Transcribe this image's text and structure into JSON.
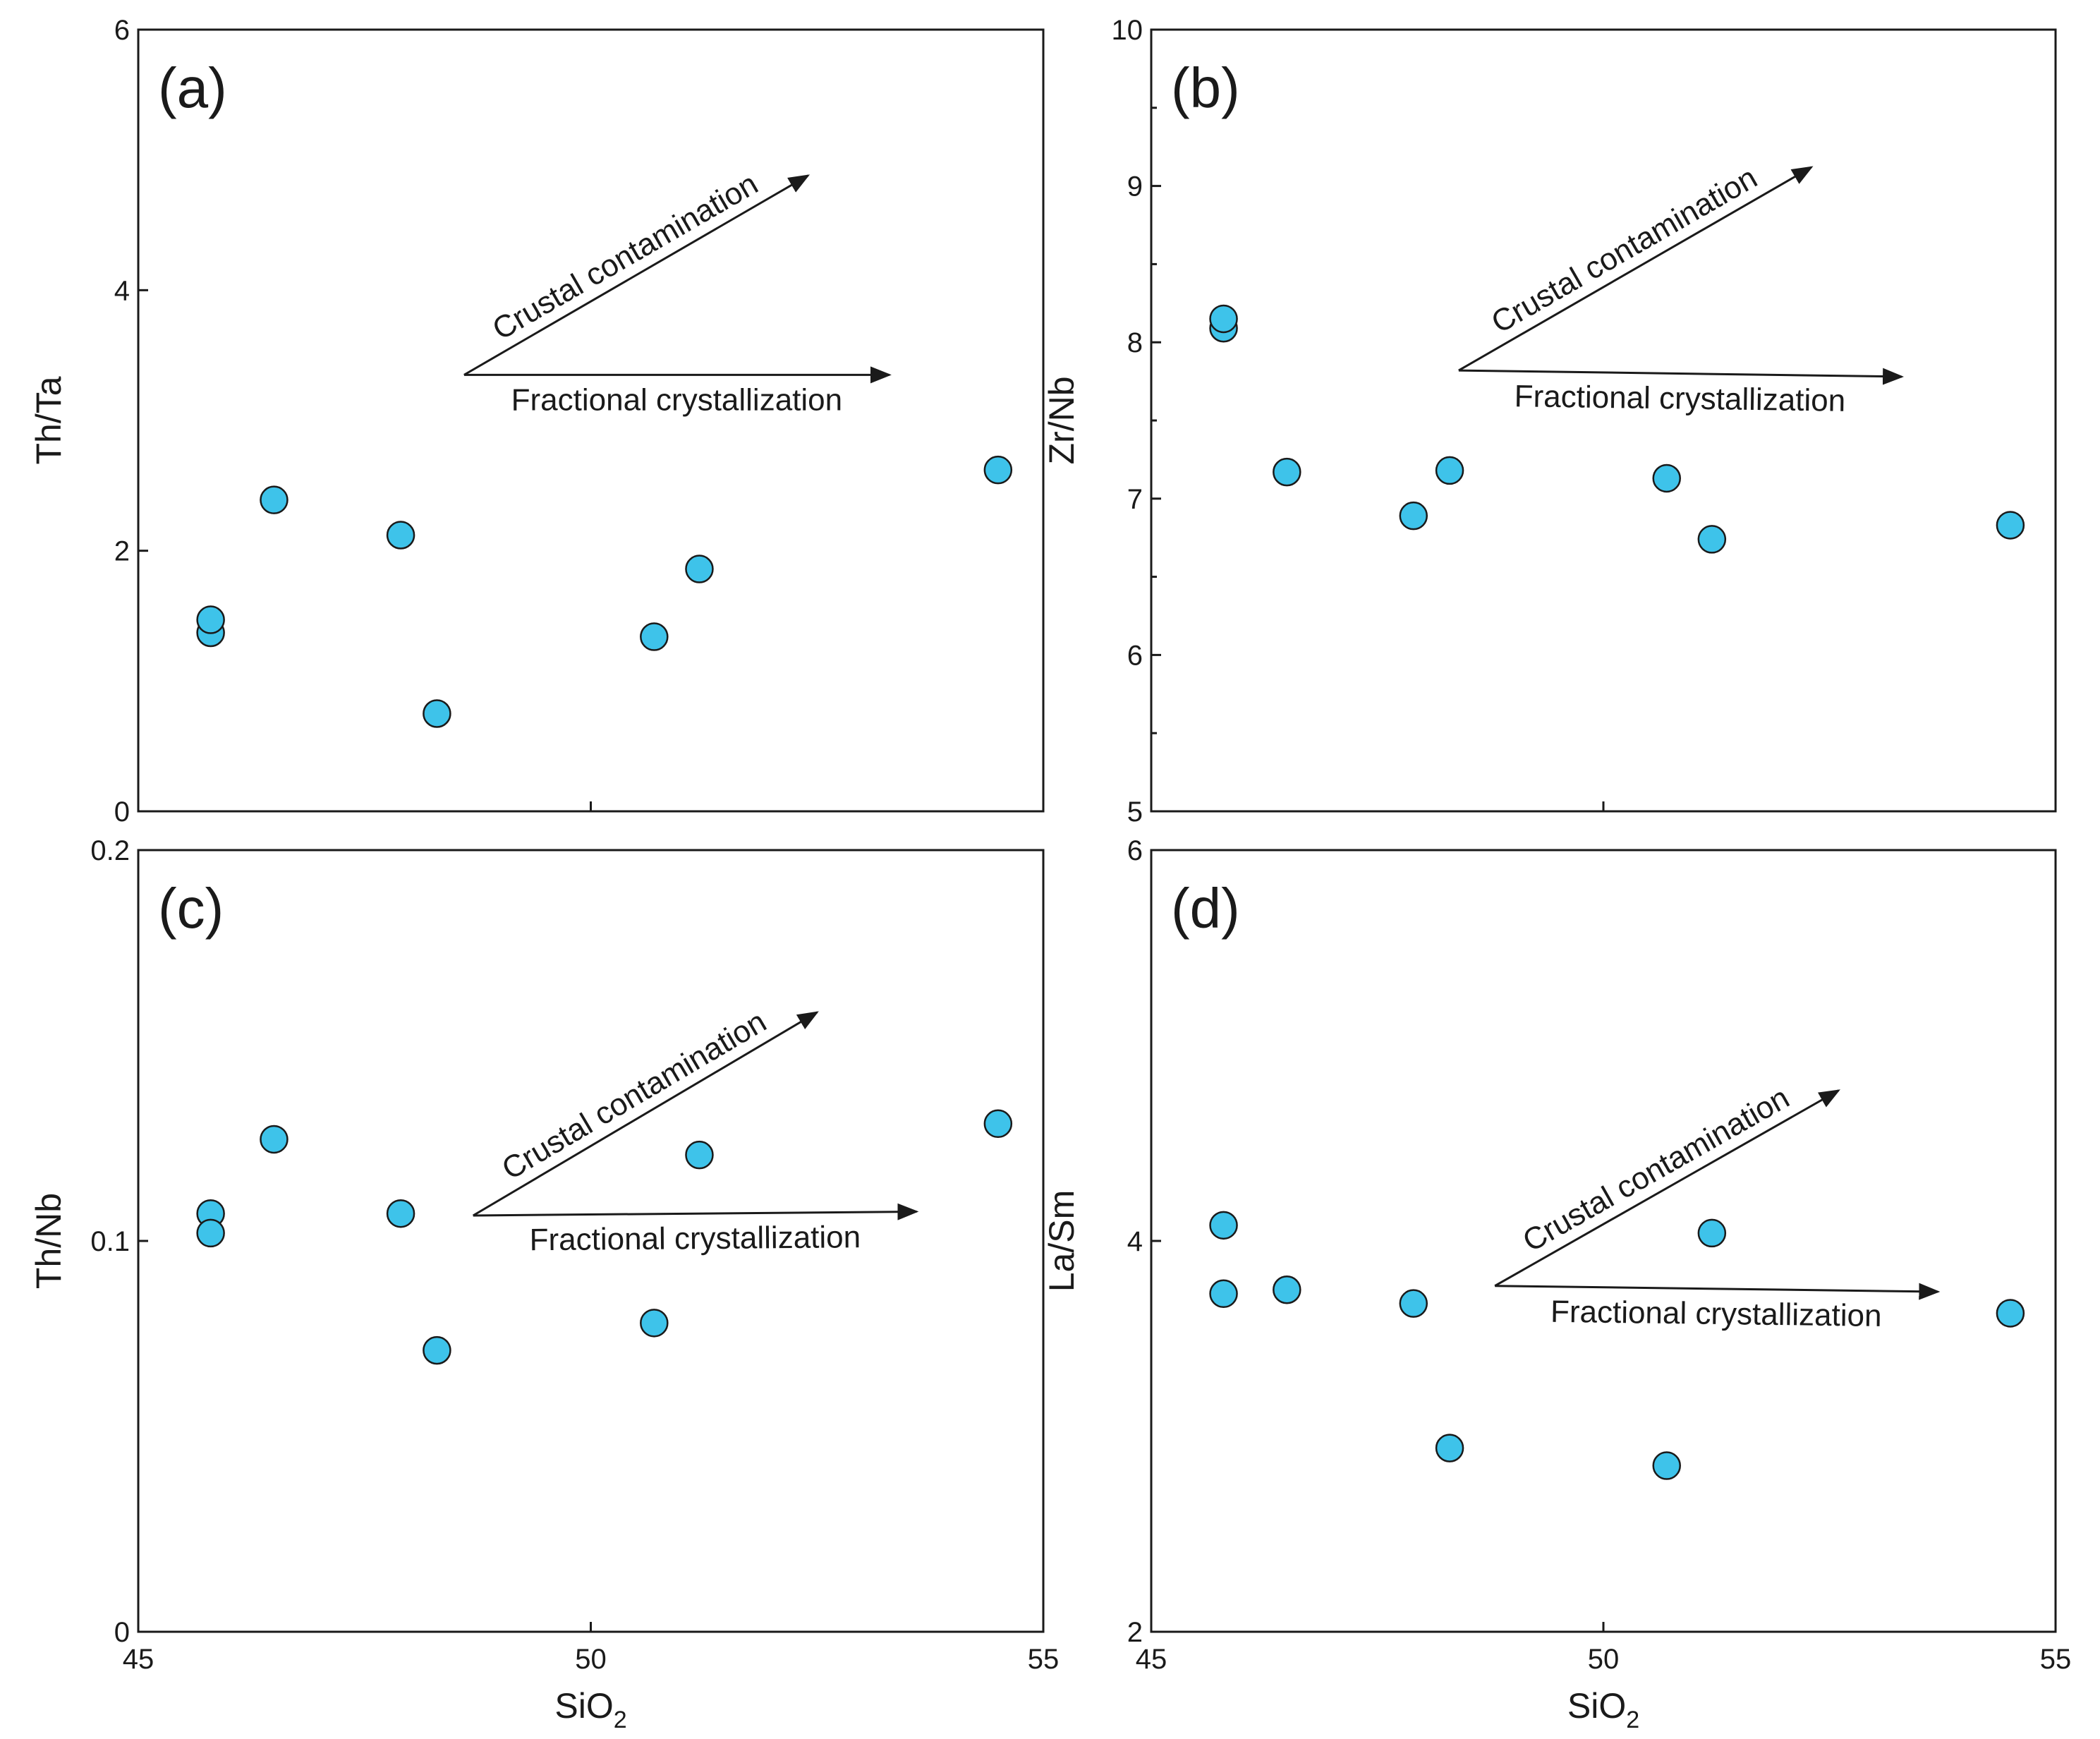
{
  "figure": {
    "marker_color": "#3ec3ea",
    "arrow_color": "#1a1a1a"
  },
  "chart_data": [
    {
      "id": "a",
      "type": "scatter",
      "panel_label": "(a)",
      "xlabel": "SiO2",
      "xlabel_parts": {
        "base": "SiO",
        "sub": "2"
      },
      "ylabel": "Th/Ta",
      "xlim": [
        45,
        55
      ],
      "ylim": [
        0,
        6
      ],
      "x_ticks": [
        "45",
        "50",
        "55"
      ],
      "x_tick_values": [
        45,
        50,
        55
      ],
      "show_x_tick_labels": false,
      "y_ticks": [
        "0",
        "2",
        "4",
        "6"
      ],
      "y_tick_values": [
        0,
        2,
        4,
        6
      ],
      "y_minor": [],
      "points": [
        {
          "x": 45.8,
          "y": 1.37
        },
        {
          "x": 45.8,
          "y": 1.47
        },
        {
          "x": 46.5,
          "y": 2.39
        },
        {
          "x": 47.9,
          "y": 2.12
        },
        {
          "x": 48.3,
          "y": 0.75
        },
        {
          "x": 50.7,
          "y": 1.34
        },
        {
          "x": 51.2,
          "y": 1.86
        },
        {
          "x": 54.5,
          "y": 2.62
        }
      ],
      "annotations": [
        {
          "label": "Crustal contamination",
          "from": [
            48.6,
            3.35
          ],
          "to": [
            52.4,
            4.88
          ],
          "text_pos": "above"
        },
        {
          "label": "Fractional crystallization",
          "from": [
            48.6,
            3.35
          ],
          "to": [
            53.3,
            3.35
          ],
          "text_pos": "below"
        }
      ]
    },
    {
      "id": "b",
      "type": "scatter",
      "panel_label": "(b)",
      "xlabel": "SiO2",
      "xlabel_parts": {
        "base": "SiO",
        "sub": "2"
      },
      "ylabel": "Zr/Nb",
      "xlim": [
        45,
        55
      ],
      "ylim": [
        5,
        10
      ],
      "x_ticks": [
        "45",
        "50",
        "55"
      ],
      "x_tick_values": [
        45,
        50,
        55
      ],
      "show_x_tick_labels": false,
      "y_ticks": [
        "5",
        "6",
        "7",
        "8",
        "9",
        "10"
      ],
      "y_tick_values": [
        5,
        6,
        7,
        8,
        9,
        10
      ],
      "y_minor": [
        5.5,
        6.5,
        7.5,
        8.5,
        9.5
      ],
      "points": [
        {
          "x": 45.8,
          "y": 8.09
        },
        {
          "x": 45.8,
          "y": 8.15
        },
        {
          "x": 46.5,
          "y": 7.17
        },
        {
          "x": 47.9,
          "y": 6.89
        },
        {
          "x": 48.3,
          "y": 7.18
        },
        {
          "x": 50.7,
          "y": 7.13
        },
        {
          "x": 51.2,
          "y": 6.74
        },
        {
          "x": 54.5,
          "y": 6.83
        }
      ],
      "annotations": [
        {
          "label": "Crustal contamination",
          "from": [
            48.4,
            7.82
          ],
          "to": [
            52.3,
            9.12
          ],
          "text_pos": "above"
        },
        {
          "label": "Fractional crystallization",
          "from": [
            48.4,
            7.82
          ],
          "to": [
            53.3,
            7.78
          ],
          "text_pos": "below"
        }
      ]
    },
    {
      "id": "c",
      "type": "scatter",
      "panel_label": "(c)",
      "xlabel": "SiO2",
      "xlabel_parts": {
        "base": "SiO",
        "sub": "2"
      },
      "ylabel": "Th/Nb",
      "xlim": [
        45,
        55
      ],
      "ylim": [
        0,
        0.2
      ],
      "x_ticks": [
        "45",
        "50",
        "55"
      ],
      "x_tick_values": [
        45,
        50,
        55
      ],
      "show_x_tick_labels": true,
      "y_ticks": [
        "0",
        "0.1",
        "0.2"
      ],
      "y_tick_values": [
        0,
        0.1,
        0.2
      ],
      "y_minor": [],
      "points": [
        {
          "x": 45.8,
          "y": 0.107
        },
        {
          "x": 45.8,
          "y": 0.102
        },
        {
          "x": 46.5,
          "y": 0.126
        },
        {
          "x": 47.9,
          "y": 0.107
        },
        {
          "x": 48.3,
          "y": 0.072
        },
        {
          "x": 50.7,
          "y": 0.079
        },
        {
          "x": 51.2,
          "y": 0.122
        },
        {
          "x": 54.5,
          "y": 0.13
        }
      ],
      "annotations": [
        {
          "label": "Crustal contamination",
          "from": [
            48.7,
            0.1065
          ],
          "to": [
            52.5,
            0.1585
          ],
          "text_pos": "above"
        },
        {
          "label": "Fractional crystallization",
          "from": [
            48.7,
            0.1065
          ],
          "to": [
            53.6,
            0.1075
          ],
          "text_pos": "below"
        }
      ]
    },
    {
      "id": "d",
      "type": "scatter",
      "panel_label": "(d)",
      "xlabel": "SiO2",
      "xlabel_parts": {
        "base": "SiO",
        "sub": "2"
      },
      "ylabel": "La/Sm",
      "xlim": [
        45,
        55
      ],
      "ylim": [
        2,
        6
      ],
      "x_ticks": [
        "45",
        "50",
        "55"
      ],
      "x_tick_values": [
        45,
        50,
        55
      ],
      "show_x_tick_labels": true,
      "y_ticks": [
        "2",
        "4",
        "6"
      ],
      "y_tick_values": [
        2,
        4,
        6
      ],
      "y_minor": [],
      "points": [
        {
          "x": 45.8,
          "y": 4.08
        },
        {
          "x": 45.8,
          "y": 3.73
        },
        {
          "x": 46.5,
          "y": 3.75
        },
        {
          "x": 47.9,
          "y": 3.68
        },
        {
          "x": 48.3,
          "y": 2.94
        },
        {
          "x": 50.7,
          "y": 2.85
        },
        {
          "x": 51.2,
          "y": 4.04
        },
        {
          "x": 54.5,
          "y": 3.63
        }
      ],
      "annotations": [
        {
          "label": "Crustal contamination",
          "from": [
            48.8,
            3.77
          ],
          "to": [
            52.6,
            4.77
          ],
          "text_pos": "above"
        },
        {
          "label": "Fractional crystallization",
          "from": [
            48.8,
            3.77
          ],
          "to": [
            53.7,
            3.74
          ],
          "text_pos": "below"
        }
      ]
    }
  ]
}
